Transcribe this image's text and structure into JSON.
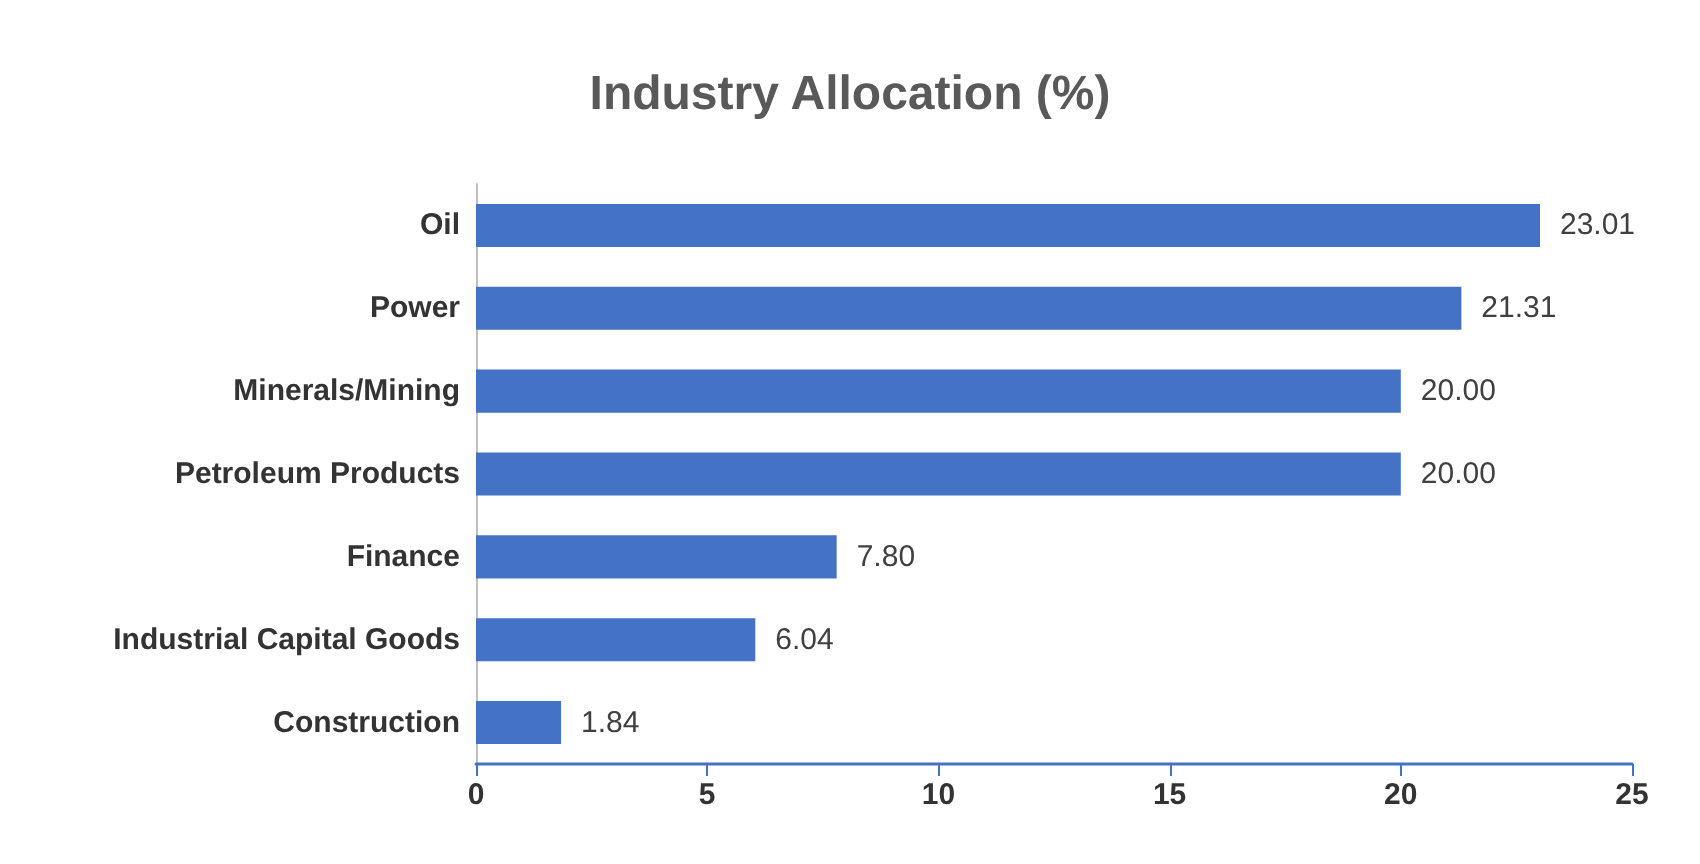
{
  "chart_data": {
    "type": "bar",
    "orientation": "horizontal",
    "title": "Industry Allocation (%)",
    "categories": [
      "Oil",
      "Power",
      "Minerals/Mining",
      "Petroleum Products",
      "Finance",
      "Industrial Capital Goods",
      "Construction"
    ],
    "values": [
      23.01,
      21.31,
      20.0,
      20.0,
      7.8,
      6.04,
      1.84
    ],
    "value_labels": [
      "23.01",
      "21.31",
      "20.00",
      "20.00",
      "7.80",
      "6.04",
      "1.84"
    ],
    "color": "#4472c4",
    "xlim": [
      0,
      25
    ],
    "xticks": [
      0,
      5,
      10,
      15,
      20,
      25
    ],
    "grid": false
  }
}
